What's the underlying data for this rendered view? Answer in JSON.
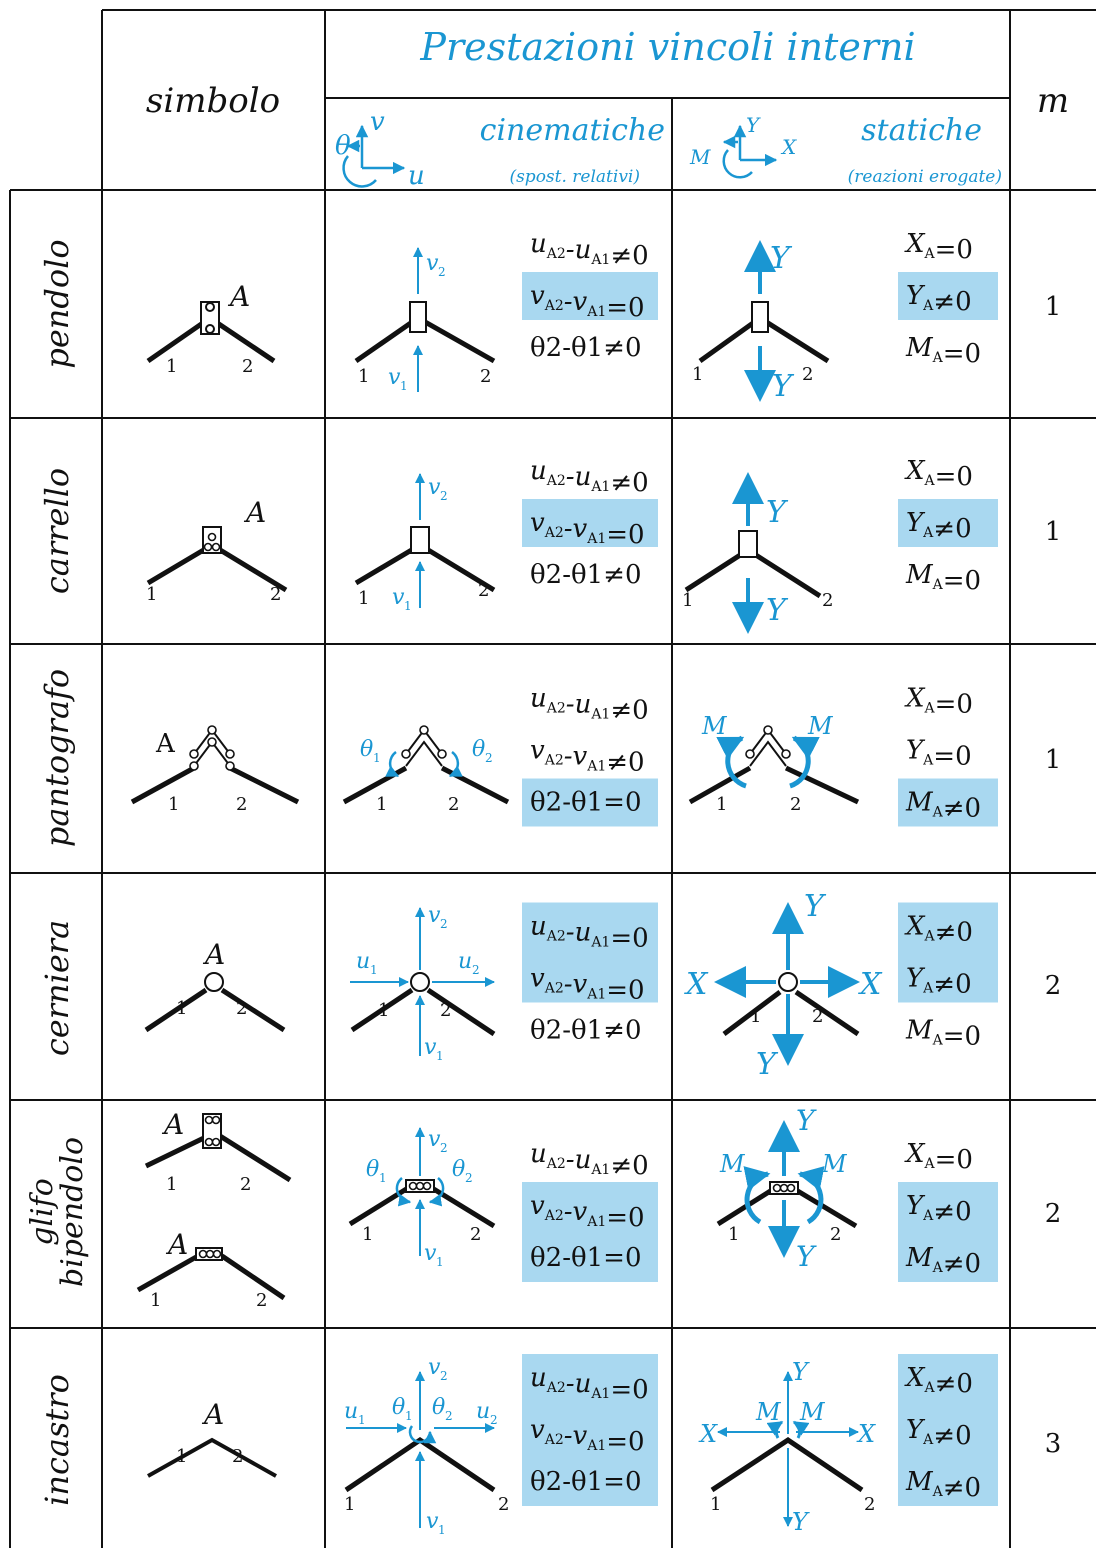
{
  "header": {
    "title": "Prestazioni vincoli interni",
    "col_symbol": "simbolo",
    "col_m": "m",
    "kinematic": {
      "label": "cinematiche",
      "sub": "(spost. relativi)",
      "theta": "θ",
      "u": "u",
      "v": "v"
    },
    "static": {
      "label": "statiche",
      "sub": "(reazioni erogate)",
      "M": "M",
      "X": "X",
      "Y": "Y"
    }
  },
  "labels": {
    "A": "A",
    "one": "1",
    "two": "2",
    "u1": "u",
    "u2": "u",
    "v1": "v",
    "v2": "v",
    "th1": "θ",
    "th2": "θ",
    "sub1": "1",
    "sub2": "2",
    "X": "X",
    "Y": "Y",
    "M": "M"
  },
  "rows": [
    {
      "name": "pendolo",
      "m": "1",
      "kin": [
        "u_{A2}-u_{A1}≠0",
        "v_{A2}-v_{A1}=0",
        "θ2-θ1≠0"
      ],
      "kin_hl": [
        false,
        true,
        false
      ],
      "stat": [
        "X_{A}=0",
        "Y_{A}≠0",
        "M_{A}=0"
      ],
      "stat_hl": [
        false,
        true,
        false
      ]
    },
    {
      "name": "carrello",
      "m": "1",
      "kin": [
        "u_{A2}-u_{A1}≠0",
        "v_{A2}-v_{A1}=0",
        "θ2-θ1≠0"
      ],
      "kin_hl": [
        false,
        true,
        false
      ],
      "stat": [
        "X_{A}=0",
        "Y_{A}≠0",
        "M_{A}=0"
      ],
      "stat_hl": [
        false,
        true,
        false
      ]
    },
    {
      "name": "pantografo",
      "m": "1",
      "kin": [
        "u_{A2}-u_{A1}≠0",
        "v_{A2}-v_{A1}≠0",
        "θ2-θ1=0"
      ],
      "kin_hl": [
        false,
        false,
        true
      ],
      "stat": [
        "X_{A}=0",
        "Y_{A}=0",
        "M_{A}≠0"
      ],
      "stat_hl": [
        false,
        false,
        true
      ]
    },
    {
      "name": "cerniera",
      "m": "2",
      "kin": [
        "u_{A2}-u_{A1}=0",
        "v_{A2}-v_{A1}=0",
        "θ2-θ1≠0"
      ],
      "kin_hl": [
        true,
        true,
        false
      ],
      "stat": [
        "X_{A}≠0",
        "Y_{A}≠0",
        "M_{A}=0"
      ],
      "stat_hl": [
        true,
        true,
        false
      ]
    },
    {
      "name": "glifo",
      "name2": "bipendolo",
      "m": "2",
      "kin": [
        "u_{A2}-u_{A1}≠0",
        "v_{A2}-v_{A1}=0",
        "θ2-θ1=0"
      ],
      "kin_hl": [
        false,
        true,
        true
      ],
      "stat": [
        "X_{A}=0",
        "Y_{A}≠0",
        "M_{A}≠0"
      ],
      "stat_hl": [
        false,
        true,
        true
      ]
    },
    {
      "name": "incastro",
      "m": "3",
      "kin": [
        "u_{A2}-u_{A1}=0",
        "v_{A2}-v_{A1}=0",
        "θ2-θ1=0"
      ],
      "kin_hl": [
        true,
        true,
        true
      ],
      "stat": [
        "X_{A}≠0",
        "Y_{A}≠0",
        "M_{A}≠0"
      ],
      "stat_hl": [
        true,
        true,
        true
      ]
    }
  ],
  "colors": {
    "accent": "#1a96d2",
    "highlight": "#a9d8f0",
    "ink": "#111111"
  }
}
